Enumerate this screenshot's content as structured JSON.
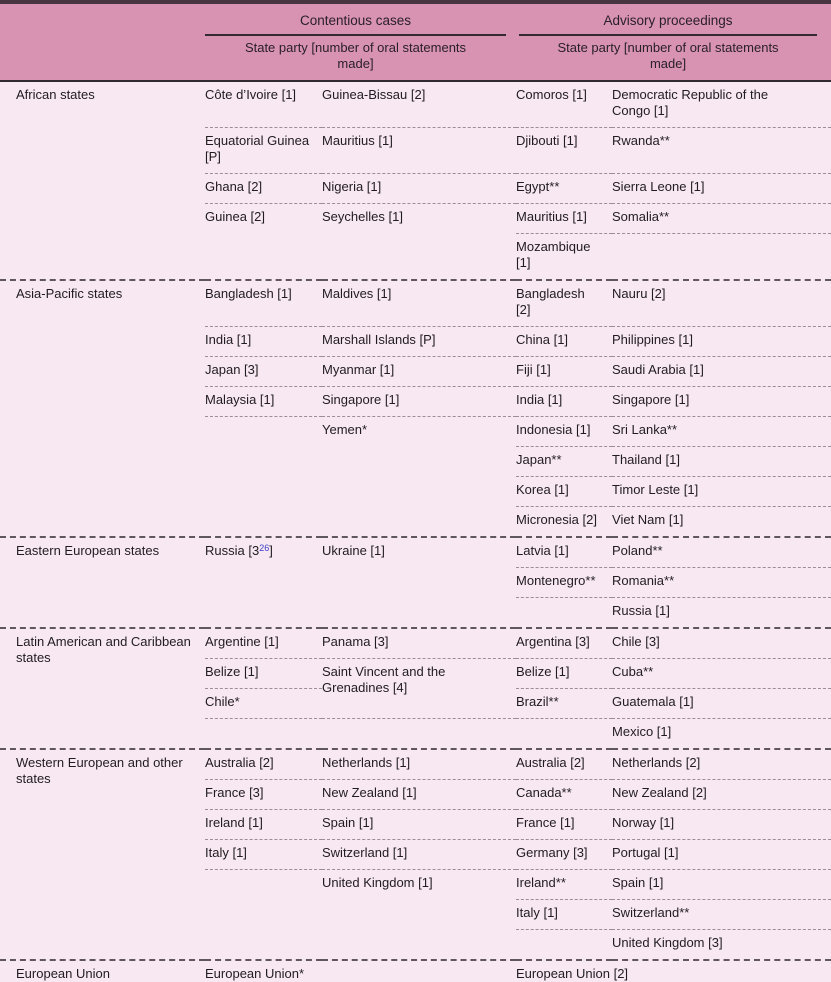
{
  "colors": {
    "header_bg": "#d892b2",
    "body_bg": "#f7e8f1",
    "top_rule": "#473542",
    "bottom_rule": "#2a2127",
    "header_rule": "#332a31",
    "row_sep": "#9b8f96",
    "region_sep": "#60565d",
    "text": "#211c20",
    "header_text": "#2a2028",
    "footnote_blue": "#3d3dcb"
  },
  "header": {
    "contentious": "Contentious cases",
    "advisory": "Advisory proceedings",
    "state_party_contentious": "State party [number of oral statements made]",
    "state_party_advisory": "State party [number of oral statements made]"
  },
  "regions": [
    {
      "label": "African states",
      "sep": false,
      "rows": [
        [
          {
            "t": "Côte d’Ivoire [1]",
            "b": true
          },
          {
            "t": "Guinea-Bissau [2]",
            "b": true
          },
          {
            "t": "Comoros [1]",
            "b": true
          },
          {
            "t": "Democratic Republic of the Congo [1]",
            "b": true
          }
        ],
        [
          {
            "t": "Equatorial Guinea [P]",
            "b": true
          },
          {
            "t": "Mauritius [1]",
            "b": true
          },
          {
            "t": "Djibouti [1]",
            "b": true
          },
          {
            "t": "Rwanda**",
            "b": true
          }
        ],
        [
          {
            "t": "Ghana [2]",
            "b": true
          },
          {
            "t": "Nigeria [1]",
            "b": true
          },
          {
            "t": "Egypt**",
            "b": true
          },
          {
            "t": "Sierra Leone [1]",
            "b": true
          }
        ],
        [
          {
            "t": "Guinea [2]"
          },
          {
            "t": "Seychelles [1]"
          },
          {
            "t": "Mauritius [1]",
            "b": true
          },
          {
            "t": "Somalia**",
            "b": true
          }
        ],
        [
          null,
          null,
          {
            "t": "Mozambique [1]"
          },
          null
        ]
      ]
    },
    {
      "label": "Asia-Pacific states",
      "sep": true,
      "rows": [
        [
          {
            "t": "Bangladesh [1]",
            "b": true
          },
          {
            "t": "Maldives [1]",
            "b": true
          },
          {
            "t": "Bangladesh [2]",
            "b": true
          },
          {
            "t": "Nauru [2]",
            "b": true
          }
        ],
        [
          {
            "t": "India [1]",
            "b": true
          },
          {
            "t": "Marshall Islands [P]",
            "b": true
          },
          {
            "t": "China [1]",
            "b": true
          },
          {
            "t": "Philippines [1]",
            "b": true
          }
        ],
        [
          {
            "t": "Japan [3]",
            "b": true
          },
          {
            "t": "Myanmar [1]",
            "b": true
          },
          {
            "t": "Fiji [1]",
            "b": true
          },
          {
            "t": "Saudi Arabia [1]",
            "b": true
          }
        ],
        [
          {
            "t": "Malaysia [1]",
            "b": true
          },
          {
            "t": "Singapore [1]",
            "b": true
          },
          {
            "t": "India [1]",
            "b": true
          },
          {
            "t": "Singapore [1]",
            "b": true
          }
        ],
        [
          null,
          {
            "t": "Yemen*"
          },
          {
            "t": "Indonesia [1]",
            "b": true
          },
          {
            "t": "Sri Lanka**",
            "b": true
          }
        ],
        [
          null,
          null,
          {
            "t": "Japan**",
            "b": true
          },
          {
            "t": "Thailand [1]",
            "b": true
          }
        ],
        [
          null,
          null,
          {
            "t": "Korea [1]",
            "b": true
          },
          {
            "t": "Timor Leste [1]",
            "b": true
          }
        ],
        [
          null,
          null,
          {
            "t": "Micronesia [2]"
          },
          {
            "t": "Viet Nam [1]"
          }
        ]
      ]
    },
    {
      "label": "Eastern European states",
      "sep": true,
      "rows": [
        [
          {
            "t": "Russia [3",
            "sup": "26",
            "t2": "]"
          },
          {
            "t": "Ukraine [1]"
          },
          {
            "t": "Latvia [1]",
            "b": true
          },
          {
            "t": "Poland**",
            "b": true
          }
        ],
        [
          null,
          null,
          {
            "t": "Montenegro**",
            "b": true
          },
          {
            "t": "Romania**",
            "b": true
          }
        ],
        [
          null,
          null,
          null,
          {
            "t": "Russia [1]"
          }
        ]
      ]
    },
    {
      "label": "Latin American and Caribbean states",
      "sep": true,
      "rows": [
        [
          {
            "t": "Argentine [1]",
            "b": true
          },
          {
            "t": "Panama [3]",
            "b": true
          },
          {
            "t": "Argentina [3]",
            "b": true
          },
          {
            "t": "Chile [3]",
            "b": true
          }
        ],
        [
          {
            "t": "Belize [1]",
            "b": true
          },
          {
            "t": "Saint Vincent and the Grenadines [4]",
            "b": true,
            "rowspan": 2
          },
          {
            "t": "Belize [1]",
            "b": true
          },
          {
            "t": "Cuba**",
            "b": true
          }
        ],
        [
          {
            "t": "Chile*",
            "b": true
          },
          {
            "skip": true
          },
          {
            "t": "Brazil**",
            "b": true
          },
          {
            "t": "Guatemala [1]",
            "b": true
          }
        ],
        [
          null,
          null,
          null,
          {
            "t": "Mexico [1]"
          }
        ]
      ]
    },
    {
      "label": "Western European and other states",
      "sep": true,
      "rows": [
        [
          {
            "t": "Australia [2]",
            "b": true
          },
          {
            "t": "Netherlands [1]",
            "b": true
          },
          {
            "t": "Australia [2]",
            "b": true
          },
          {
            "t": "Netherlands [2]",
            "b": true
          }
        ],
        [
          {
            "t": "France [3]",
            "b": true
          },
          {
            "t": "New Zealand [1]",
            "b": true
          },
          {
            "t": "Canada**",
            "b": true
          },
          {
            "t": "New Zealand [2]",
            "b": true
          }
        ],
        [
          {
            "t": "Ireland [1]",
            "b": true
          },
          {
            "t": "Spain [1]",
            "b": true
          },
          {
            "t": "France [1]",
            "b": true
          },
          {
            "t": "Norway [1]",
            "b": true
          }
        ],
        [
          {
            "t": "Italy [1]",
            "b": true
          },
          {
            "t": "Switzerland [1]",
            "b": true
          },
          {
            "t": "Germany [3]",
            "b": true
          },
          {
            "t": "Portugal [1]",
            "b": true
          }
        ],
        [
          null,
          {
            "t": "United Kingdom [1]"
          },
          {
            "t": "Ireland**",
            "b": true
          },
          {
            "t": "Spain [1]",
            "b": true
          }
        ],
        [
          null,
          null,
          {
            "t": "Italy [1]",
            "b": true
          },
          {
            "t": "Switzerland**",
            "b": true
          }
        ],
        [
          null,
          null,
          null,
          {
            "t": "United Kingdom [3]"
          }
        ]
      ]
    },
    {
      "label": "European Union",
      "sep": true,
      "rows": [
        [
          {
            "t": "European Union*",
            "colspan": 2
          },
          {
            "t": "European Union [2]",
            "colspan": 2
          }
        ]
      ]
    }
  ]
}
